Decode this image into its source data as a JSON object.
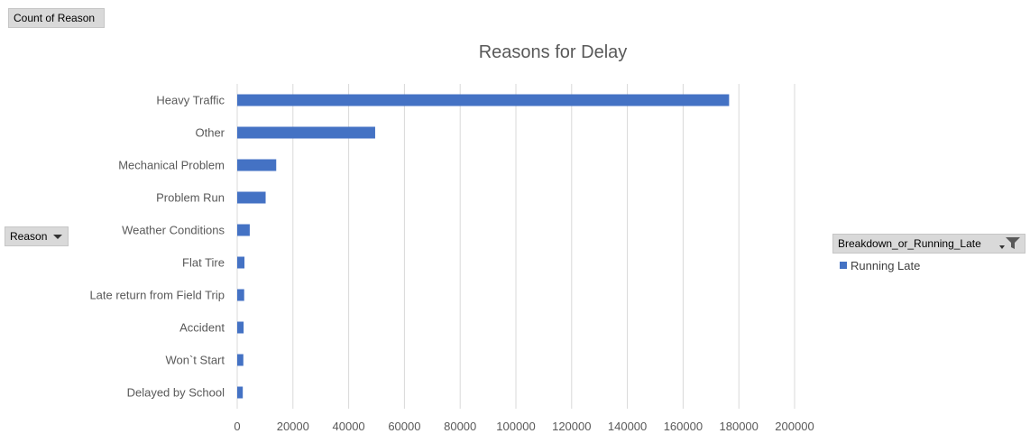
{
  "pivot": {
    "values_field": "Count of Reason",
    "axis_field": "Reason",
    "legend_field": "Breakdown_or_Running_Late"
  },
  "legend": {
    "items": [
      "Running Late"
    ]
  },
  "colors": {
    "bar": "#4472c4",
    "grid": "#d9d9d9"
  },
  "icons": {
    "dropdown": "chevron-down-icon",
    "filter": "filter-funnel-icon"
  },
  "chart_data": {
    "type": "bar",
    "orientation": "horizontal",
    "title": "Reasons for Delay",
    "categories": [
      "Heavy Traffic",
      "Other",
      "Mechanical Problem",
      "Problem Run",
      "Weather Conditions",
      "Flat Tire",
      "Late return from Field Trip",
      "Accident",
      "Won`t Start",
      "Delayed by School"
    ],
    "series": [
      {
        "name": "Running Late",
        "values": [
          176500,
          49500,
          14000,
          10200,
          4500,
          2600,
          2500,
          2300,
          2200,
          2000
        ]
      }
    ],
    "xlim": [
      0,
      200000
    ],
    "xticks": [
      0,
      20000,
      40000,
      60000,
      80000,
      100000,
      120000,
      140000,
      160000,
      180000,
      200000
    ],
    "grid": "vertical",
    "legend_position": "right"
  }
}
